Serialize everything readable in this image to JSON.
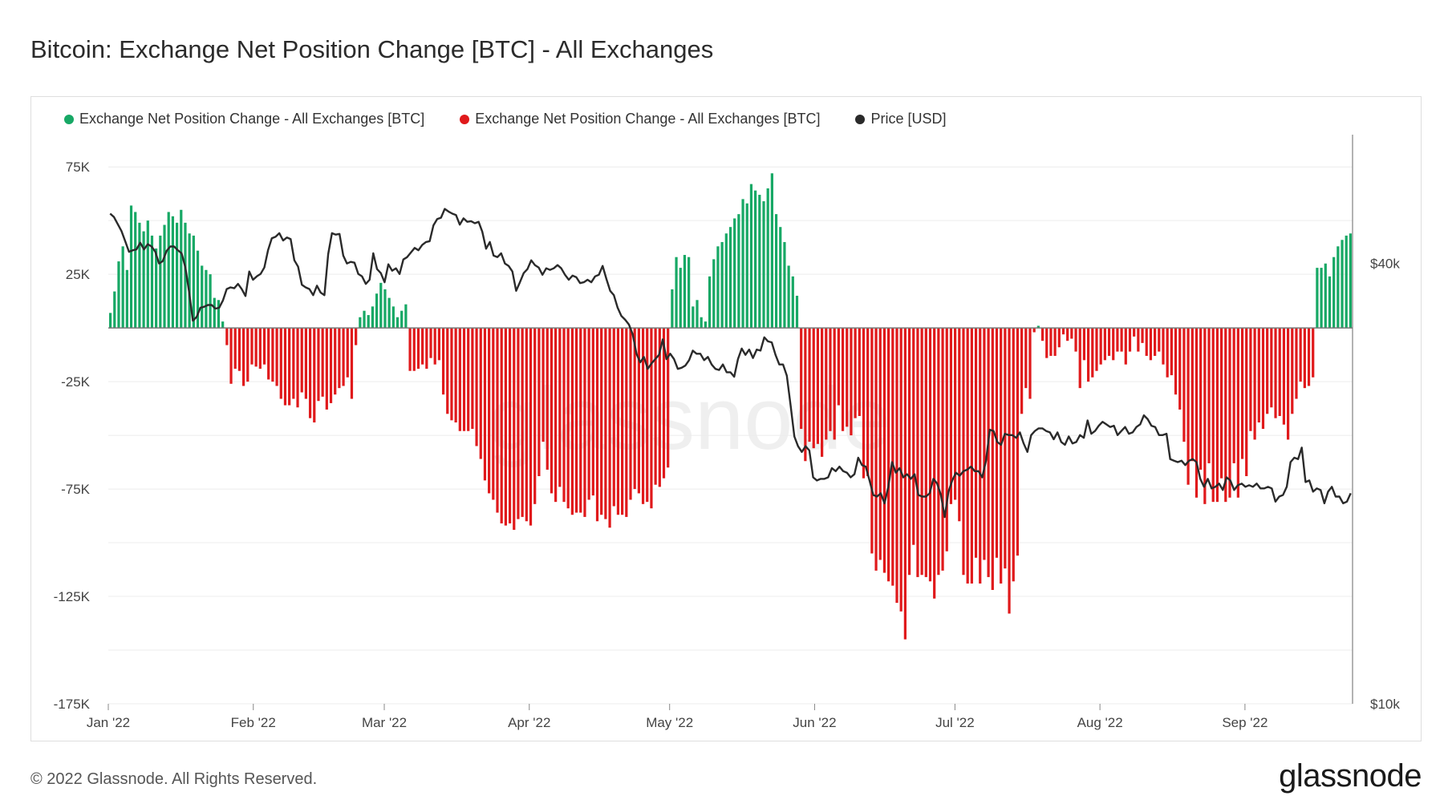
{
  "title": "Bitcoin: Exchange Net Position Change [BTC] - All Exchanges",
  "footer": "© 2022 Glassnode. All Rights Reserved.",
  "brand": "glassnode",
  "watermark": "glassnode",
  "colors": {
    "positive": "#17a865",
    "negative": "#e0191b",
    "price": "#2a2a2a",
    "grid": "#ececec"
  },
  "legend": [
    {
      "label": "Exchange Net Position Change - All Exchanges [BTC]",
      "color": "#17a865"
    },
    {
      "label": "Exchange Net Position Change - All Exchanges [BTC]",
      "color": "#e0191b"
    },
    {
      "label": "Price [USD]",
      "color": "#2a2a2a"
    }
  ],
  "chart_data": {
    "type": "bar",
    "title": "Bitcoin: Exchange Net Position Change [BTC] - All Exchanges",
    "y_left": {
      "ticks": [
        75000,
        25000,
        -25000,
        -75000,
        -125000,
        -175000
      ],
      "tick_labels": [
        "75K",
        "25K",
        "-25K",
        "-75K",
        "-125K",
        "-175K"
      ],
      "range": [
        -175000,
        90000
      ]
    },
    "y_right": {
      "scale": "log",
      "ticks": [
        40000,
        10000
      ],
      "tick_labels": [
        "$40k",
        "$10k"
      ],
      "range": [
        10000,
        60000
      ]
    },
    "x_ticks": [
      {
        "label": "Jan '22",
        "day": 0
      },
      {
        "label": "Feb '22",
        "day": 31
      },
      {
        "label": "Mar '22",
        "day": 59
      },
      {
        "label": "Apr '22",
        "day": 90
      },
      {
        "label": "May '22",
        "day": 120
      },
      {
        "label": "Jun '22",
        "day": 151
      },
      {
        "label": "Jul '22",
        "day": 181
      },
      {
        "label": "Aug '22",
        "day": 212
      },
      {
        "label": "Sep '22",
        "day": 243
      }
    ],
    "x_range": [
      0,
      266
    ],
    "grid": true,
    "legend_position": "top-left",
    "series": [
      {
        "name": "Exchange Net Position Change - All Exchanges [BTC]",
        "kind": "bar",
        "values": [
          7000,
          17000,
          31000,
          38000,
          27000,
          57000,
          54000,
          49000,
          45000,
          50000,
          43000,
          37000,
          43000,
          48000,
          54000,
          52000,
          49000,
          55000,
          49000,
          44000,
          43000,
          36000,
          29000,
          27000,
          25000,
          14000,
          13000,
          3000,
          -8000,
          -26000,
          -19000,
          -20000,
          -27000,
          -25000,
          -17000,
          -18000,
          -19000,
          -17000,
          -24000,
          -25000,
          -27000,
          -33000,
          -36000,
          -36000,
          -33000,
          -37000,
          -30000,
          -33000,
          -42000,
          -44000,
          -34000,
          -32000,
          -38000,
          -35000,
          -31000,
          -28000,
          -27000,
          -23000,
          -33000,
          -8000,
          5000,
          8000,
          6000,
          10000,
          16000,
          21000,
          18000,
          14000,
          10000,
          5000,
          8000,
          11000,
          -20000,
          -20000,
          -19000,
          -17000,
          -19000,
          -14000,
          -17000,
          -15000,
          -31000,
          -40000,
          -43000,
          -44000,
          -48000,
          -48000,
          -48000,
          -47000,
          -55000,
          -61000,
          -71000,
          -77000,
          -80000,
          -86000,
          -91000,
          -92000,
          -91000,
          -94000,
          -89000,
          -88000,
          -90000,
          -92000,
          -82000,
          -69000,
          -53000,
          -66000,
          -77000,
          -81000,
          -74000,
          -81000,
          -84000,
          -87000,
          -86000,
          -86000,
          -88000,
          -80000,
          -78000,
          -90000,
          -87000,
          -89000,
          -93000,
          -83000,
          -87000,
          -87000,
          -88000,
          -80000,
          -75000,
          -77000,
          -82000,
          -81000,
          -84000,
          -73000,
          -74000,
          -70000,
          -65000,
          18000,
          33000,
          28000,
          34000,
          33000,
          10000,
          13000,
          5000,
          3000,
          24000,
          32000,
          38000,
          40000,
          44000,
          47000,
          51000,
          53000,
          60000,
          58000,
          67000,
          64000,
          62000,
          59000,
          65000,
          72000,
          53000,
          47000,
          40000,
          29000,
          24000,
          15000,
          -47000,
          -62000,
          -53000,
          -56000,
          -54000,
          -60000,
          -52000,
          -48000,
          -52000,
          -36000,
          -48000,
          -46000,
          -50000,
          -42000,
          -41000,
          -70000,
          -69000,
          -105000,
          -113000,
          -108000,
          -114000,
          -118000,
          -120000,
          -128000,
          -132000,
          -145000,
          -115000,
          -101000,
          -116000,
          -115000,
          -116000,
          -118000,
          -126000,
          -115000,
          -113000,
          -104000,
          -82000,
          -80000,
          -90000,
          -115000,
          -119000,
          -119000,
          -107000,
          -119000,
          -108000,
          -116000,
          -122000,
          -107000,
          -119000,
          -112000,
          -133000,
          -118000,
          -106000,
          -40000,
          -28000,
          -33000,
          -2000,
          1000,
          -6000,
          -14000,
          -13000,
          -13000,
          -9000,
          -3000,
          -6000,
          -5000,
          -11000,
          -28000,
          -15000,
          -25000,
          -23000,
          -20000,
          -17000,
          -15000,
          -13000,
          -15000,
          -11000,
          -11000,
          -17000,
          -11000,
          -4000,
          -11000,
          -7000,
          -13000,
          -15000,
          -13000,
          -11000,
          -17000,
          -23000,
          -22000,
          -31000,
          -38000,
          -53000,
          -73000,
          -62000,
          -79000,
          -66000,
          -82000,
          -63000,
          -81000,
          -81000,
          -70000,
          -81000,
          -79000,
          -63000,
          -79000,
          -61000,
          -69000,
          -48000,
          -52000,
          -44000,
          -47000,
          -40000,
          -37000,
          -42000,
          -41000,
          -45000,
          -52000,
          -40000,
          -33000,
          -25000,
          -28000,
          -27000,
          -23000,
          28000,
          28000,
          30000,
          24000,
          33000,
          38000,
          41000,
          43000,
          44000
        ]
      },
      {
        "name": "Price [USD]",
        "kind": "line",
        "axis": "right",
        "values": [
          46800,
          46300,
          45300,
          44300,
          42900,
          41500,
          41700,
          41800,
          42700,
          41800,
          42500,
          42200,
          41500,
          40000,
          40300,
          41600,
          42200,
          42200,
          41700,
          41300,
          39500,
          36600,
          33400,
          33800,
          34800,
          34900,
          35100,
          35100,
          34700,
          34800,
          35600,
          36900,
          37100,
          37000,
          37500,
          36900,
          36100,
          39000,
          38000,
          38400,
          38700,
          39500,
          41700,
          43300,
          43500,
          44000,
          43000,
          43400,
          43200,
          40400,
          39600,
          37400,
          37100,
          36900,
          36200,
          37300,
          36500,
          36200,
          41200,
          44000,
          43800,
          43900,
          41000,
          40000,
          40200,
          40100,
          38700,
          38400,
          37500,
          38000,
          41300,
          39300,
          38800,
          37700,
          39900,
          39100,
          39400,
          38700,
          40500,
          40800,
          41400,
          42000,
          41700,
          42400,
          42800,
          42900,
          45100,
          46000,
          46200,
          47500,
          47100,
          46800,
          46600,
          45200,
          46100,
          45600,
          45700,
          45400,
          45600,
          44200,
          41900,
          42800,
          41000,
          40800,
          41300,
          40000,
          39700,
          39000,
          36700,
          37700,
          38800,
          39300,
          40400,
          39800,
          39500,
          38600,
          39400,
          39200,
          39400,
          39800,
          39400,
          38600,
          38000,
          38500,
          38300,
          37600,
          37700,
          38000,
          37700,
          38400,
          38600,
          39700,
          38100,
          36700,
          36200,
          34800,
          33900,
          33500,
          33000,
          32000,
          30100,
          29300,
          29800,
          28700,
          29200,
          29600,
          30000,
          31500,
          29600,
          30100,
          29600,
          28700,
          28800,
          29000,
          29500,
          30400,
          30100,
          30100,
          29500,
          29800,
          29100,
          28700,
          28600,
          29100,
          28400,
          28400,
          28000,
          29600,
          30600,
          30000,
          30500,
          29700,
          30500,
          30400,
          31700,
          31300,
          31200,
          30000,
          29100,
          29100,
          28100,
          25600,
          23200,
          22500,
          22100,
          22500,
          22200,
          20400,
          20200,
          20300,
          20300,
          20400,
          21000,
          20800,
          21100,
          20800,
          20700,
          20400,
          20600,
          21700,
          21200,
          21100,
          20200,
          19300,
          19200,
          19400,
          18800,
          19800,
          21400,
          20700,
          21000,
          20400,
          20600,
          20300,
          20600,
          19300,
          19200,
          19200,
          19400,
          20300,
          20000,
          19300,
          18000,
          19500,
          20200,
          20700,
          20500,
          20800,
          20900,
          21100,
          20800,
          20800,
          20400,
          21500,
          23700,
          23600,
          22800,
          22600,
          23400,
          23300,
          23300,
          23100,
          23500,
          22700,
          22100,
          23300,
          23600,
          23800,
          23800,
          23600,
          23500,
          23000,
          23500,
          22800,
          22600,
          23200,
          22700,
          22800,
          23300,
          23100,
          24400,
          23400,
          23600,
          24000,
          24300,
          24100,
          23900,
          24000,
          23300,
          23600,
          23900,
          23400,
          23500,
          23900,
          24100,
          24800,
          24500,
          24000,
          23900,
          23300,
          23300,
          23400,
          21600,
          21500,
          21400,
          21500,
          21200,
          21500,
          21600,
          21400,
          20300,
          19800,
          20300,
          19700,
          19800,
          20000,
          19600,
          20400,
          20200,
          19600,
          19900,
          20000,
          19800,
          19900,
          19800,
          20000,
          19700,
          19700,
          19800,
          19700,
          18900,
          19200,
          19300,
          19800,
          21400,
          21700,
          21600,
          22400,
          20100,
          20200,
          19500,
          19700,
          19600,
          18800,
          19500,
          19800,
          19200,
          19200,
          18800,
          18900,
          19400
        ]
      }
    ]
  }
}
